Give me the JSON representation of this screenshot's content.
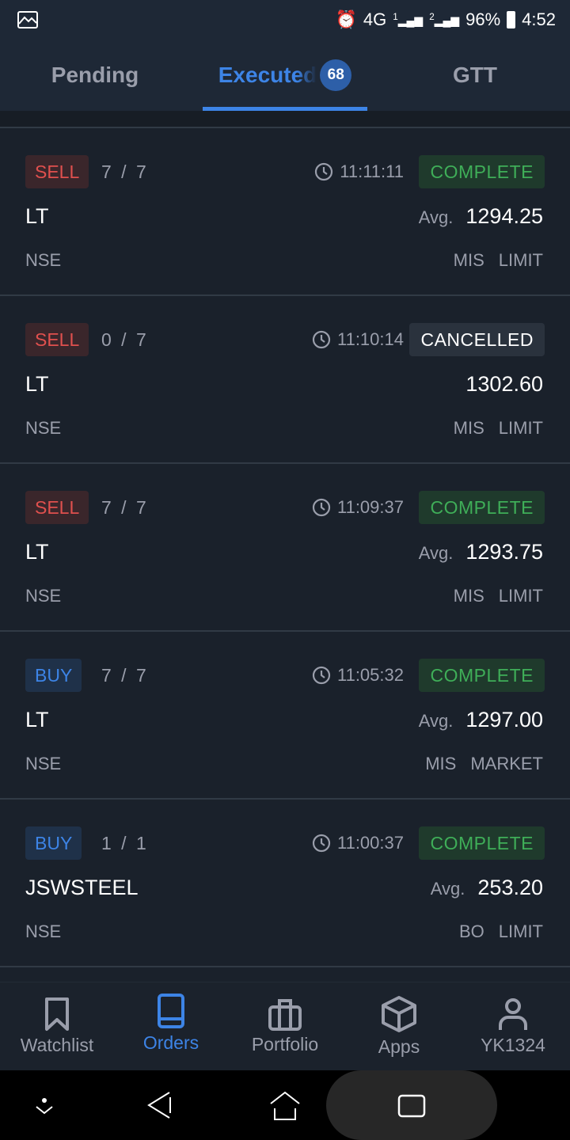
{
  "status_bar": {
    "network": "4G",
    "sim1": "1",
    "sim2": "2",
    "battery": "96%",
    "time": "4:52"
  },
  "tabs": [
    {
      "label": "Pending"
    },
    {
      "label": "Executed",
      "count": "68",
      "active": true
    },
    {
      "label": "GTT"
    }
  ],
  "orders": [
    {
      "side": "SELL",
      "qty": "7 / 7",
      "time": "11:11:11",
      "status": "COMPLETE",
      "symbol": "LT",
      "avg_label": "Avg.",
      "price": "1294.25",
      "exchange": "NSE",
      "product": "MIS",
      "order_type": "LIMIT"
    },
    {
      "side": "SELL",
      "qty": "0 / 7",
      "time": "11:10:14",
      "status": "CANCELLED",
      "symbol": "LT",
      "avg_label": "",
      "price": "1302.60",
      "exchange": "NSE",
      "product": "MIS",
      "order_type": "LIMIT"
    },
    {
      "side": "SELL",
      "qty": "7 / 7",
      "time": "11:09:37",
      "status": "COMPLETE",
      "symbol": "LT",
      "avg_label": "Avg.",
      "price": "1293.75",
      "exchange": "NSE",
      "product": "MIS",
      "order_type": "LIMIT"
    },
    {
      "side": "BUY",
      "qty": "7 / 7",
      "time": "11:05:32",
      "status": "COMPLETE",
      "symbol": "LT",
      "avg_label": "Avg.",
      "price": "1297.00",
      "exchange": "NSE",
      "product": "MIS",
      "order_type": "MARKET"
    },
    {
      "side": "BUY",
      "qty": "1 / 1",
      "time": "11:00:37",
      "status": "COMPLETE",
      "symbol": "JSWSTEEL",
      "avg_label": "Avg.",
      "price": "253.20",
      "exchange": "NSE",
      "product": "BO",
      "order_type": "LIMIT"
    }
  ],
  "bottom_nav": [
    {
      "label": "Watchlist",
      "icon": "bookmark-icon"
    },
    {
      "label": "Orders",
      "icon": "book-icon",
      "active": true
    },
    {
      "label": "Portfolio",
      "icon": "briefcase-icon"
    },
    {
      "label": "Apps",
      "icon": "box-icon"
    },
    {
      "label": "YK1324",
      "icon": "user-icon"
    }
  ],
  "colors": {
    "accent": "#3d84e6",
    "sell": "#e0504e",
    "complete": "#3fae58",
    "background": "#1a212b"
  }
}
